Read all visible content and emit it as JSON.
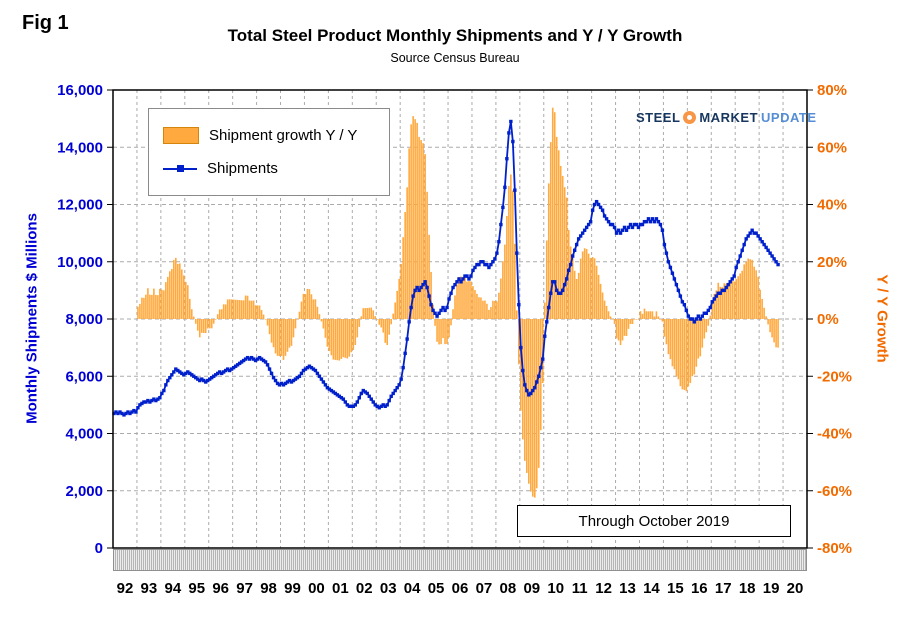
{
  "fig_label": "Fig 1",
  "title": "Total Steel Product Monthly Shipments and Y / Y Growth",
  "subtitle": "Source Census Bureau",
  "annotation": "Through October 2019",
  "logo": {
    "part1": "STEEL",
    "part2": "MARKET",
    "part3": "UPDATE"
  },
  "legend": [
    {
      "label": "Shipment growth Y / Y",
      "type": "bar"
    },
    {
      "label": "Shipments",
      "type": "line"
    }
  ],
  "axes": {
    "left_title": "Monthly Shipments $ Millions",
    "left_min": 0,
    "left_max": 16000,
    "left_ticks": [
      "0",
      "2,000",
      "4,000",
      "6,000",
      "8,000",
      "10,000",
      "12,000",
      "14,000",
      "16,000"
    ],
    "right_title": "Y / Y Growth",
    "right_min": -0.8,
    "right_max": 0.8,
    "right_ticks": [
      "-80%",
      "-60%",
      "-40%",
      "-20%",
      "0%",
      "20%",
      "40%",
      "60%",
      "80%"
    ],
    "x_labels": [
      "92",
      "93",
      "94",
      "95",
      "96",
      "97",
      "98",
      "99",
      "00",
      "01",
      "02",
      "03",
      "04",
      "05",
      "06",
      "07",
      "08",
      "09",
      "10",
      "11",
      "12",
      "13",
      "14",
      "15",
      "16",
      "17",
      "18",
      "19",
      "20"
    ]
  },
  "colors": {
    "bar": "#FFA93E",
    "bar_edge": "#E8940A",
    "line": "#0020CC",
    "left_axis": "#0000D4",
    "right_axis": "#F26B00",
    "grid": "#ABABAB",
    "logo_orange": "#F79646"
  },
  "chart_data": {
    "type": "line+bar",
    "title": "Total Steel Product Monthly Shipments and Y / Y Growth",
    "subtitle": "Source Census Bureau",
    "x_unit": "month",
    "x_range": "Jan 1992 - Oct 2019 (axis drawn through 2020)",
    "left_axis": {
      "label": "Monthly Shipments $ Millions",
      "min": 0,
      "max": 16000
    },
    "right_axis": {
      "label": "Y / Y Growth",
      "min": -0.8,
      "max": 0.8
    },
    "grid": true,
    "legend_position": "top-left-inside",
    "series_info": [
      {
        "name": "Shipments",
        "type": "line",
        "axis": "left",
        "marker": "square"
      },
      {
        "name": "Shipment growth Y / Y",
        "type": "bar",
        "axis": "right",
        "derivation": "shipments value divided by value 12 months prior, minus 1"
      }
    ],
    "shipments_by_year": {
      "1992": [
        4700,
        4750,
        4700,
        4750,
        4700,
        4650,
        4700,
        4750,
        4700,
        4750,
        4800,
        4750
      ],
      "1993": [
        4900,
        5000,
        5050,
        5100,
        5100,
        5150,
        5100,
        5150,
        5200,
        5150,
        5200,
        5250
      ],
      "1994": [
        5400,
        5500,
        5700,
        5850,
        5950,
        6050,
        6150,
        6250,
        6200,
        6150,
        6100,
        6050
      ],
      "1995": [
        6100,
        6150,
        6100,
        6050,
        6000,
        5950,
        5900,
        5850,
        5900,
        5850,
        5800,
        5850
      ],
      "1996": [
        5900,
        5950,
        6000,
        6050,
        6100,
        6150,
        6100,
        6150,
        6200,
        6250,
        6200,
        6250
      ],
      "1997": [
        6300,
        6350,
        6400,
        6450,
        6500,
        6550,
        6600,
        6650,
        6600,
        6650,
        6600,
        6550
      ],
      "1998": [
        6600,
        6650,
        6600,
        6550,
        6500,
        6400,
        6250,
        6100,
        5950,
        5850,
        5750,
        5700
      ],
      "1999": [
        5750,
        5700,
        5750,
        5800,
        5850,
        5800,
        5850,
        5900,
        5950,
        6000,
        6100,
        6200
      ],
      "2000": [
        6250,
        6300,
        6350,
        6300,
        6250,
        6200,
        6100,
        6000,
        5900,
        5800,
        5700,
        5600
      ],
      "2001": [
        5550,
        5500,
        5450,
        5400,
        5350,
        5300,
        5250,
        5200,
        5100,
        5000,
        4950,
        4950
      ],
      "2002": [
        4950,
        5000,
        5100,
        5250,
        5400,
        5500,
        5450,
        5400,
        5300,
        5200,
        5100,
        5000
      ],
      "2003": [
        4950,
        4900,
        4950,
        5000,
        4950,
        5000,
        5150,
        5300,
        5400,
        5500,
        5600,
        5700
      ],
      "2004": [
        5900,
        6300,
        6800,
        7300,
        7900,
        8400,
        8800,
        9000,
        9100,
        9000,
        9100,
        9200
      ],
      "2005": [
        9300,
        9100,
        8800,
        8500,
        8300,
        8200,
        8100,
        8200,
        8300,
        8400,
        8300,
        8400
      ],
      "2006": [
        8700,
        8900,
        9100,
        9200,
        9300,
        9400,
        9300,
        9400,
        9500,
        9500,
        9400,
        9500
      ],
      "2007": [
        9700,
        9800,
        9900,
        9900,
        10000,
        10000,
        9900,
        9900,
        9800,
        9900,
        10000,
        10100
      ],
      "2008": [
        10300,
        10700,
        11300,
        11900,
        12600,
        13600,
        14500,
        14900,
        14200,
        12500,
        10300,
        8500
      ],
      "2009": [
        7000,
        6200,
        5700,
        5500,
        5350,
        5400,
        5500,
        5600,
        5800,
        6000,
        6300,
        6600
      ],
      "2010": [
        7400,
        7900,
        8400,
        8900,
        9300,
        9300,
        9000,
        8900,
        8900,
        9000,
        9200,
        9400
      ],
      "2011": [
        9700,
        9900,
        10200,
        10400,
        10600,
        10800,
        10900,
        11000,
        11100,
        11200,
        11300,
        11400
      ],
      "2012": [
        11800,
        12000,
        12100,
        12000,
        11900,
        11800,
        11600,
        11500,
        11400,
        11300,
        11300,
        11200
      ],
      "2013": [
        11000,
        11100,
        11000,
        11100,
        11200,
        11100,
        11200,
        11300,
        11200,
        11300,
        11300,
        11200
      ],
      "2014": [
        11300,
        11300,
        11400,
        11400,
        11500,
        11400,
        11500,
        11400,
        11500,
        11400,
        11300,
        11100
      ],
      "2015": [
        10600,
        10300,
        10000,
        9800,
        9600,
        9400,
        9200,
        9000,
        8800,
        8600,
        8500,
        8300
      ],
      "2016": [
        8100,
        8000,
        8000,
        7900,
        8000,
        8100,
        8000,
        8100,
        8200,
        8200,
        8300,
        8400
      ],
      "2017": [
        8600,
        8700,
        8800,
        8900,
        8900,
        9000,
        9000,
        9100,
        9200,
        9300,
        9400,
        9500
      ],
      "2018": [
        9800,
        10000,
        10200,
        10400,
        10600,
        10800,
        10900,
        11000,
        11100,
        11000,
        11000,
        10900
      ],
      "2019": [
        10800,
        10700,
        10600,
        10500,
        10400,
        10300,
        10200,
        10100,
        10000,
        9900
      ]
    }
  }
}
